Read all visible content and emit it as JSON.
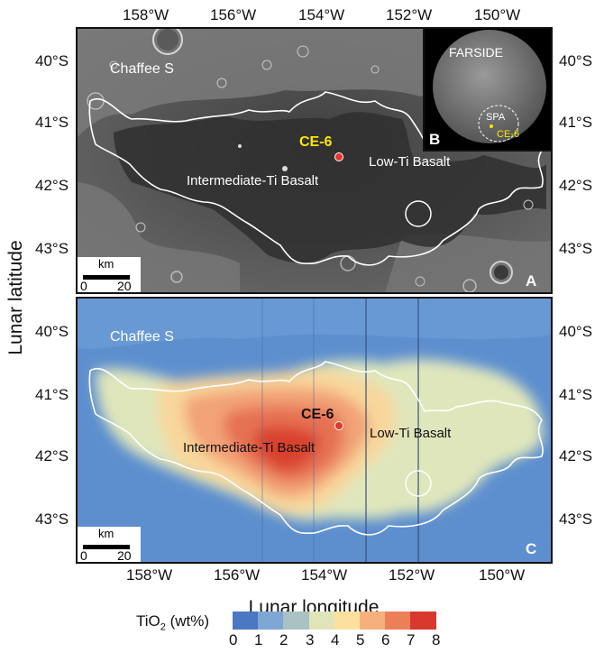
{
  "axes": {
    "lon_ticks": [
      "158°W",
      "156°W",
      "154°W",
      "152°W",
      "150°W"
    ],
    "lat_ticks": [
      "40°S",
      "41°S",
      "42°S",
      "43°S"
    ],
    "x_title": "Lunar longitude",
    "y_title": "Lunar latitude"
  },
  "panel_a": {
    "letter": "A",
    "chaffee": "Chaffee S",
    "site": "CE-6",
    "intermediate": "Intermediate-Ti Basalt",
    "low_ti": "Low-Ti Basalt",
    "scale_unit": "km",
    "scale_min": "0",
    "scale_max": "20"
  },
  "inset": {
    "letter": "B",
    "farside": "FARSIDE",
    "spa": "SPA",
    "site": "CE-6"
  },
  "panel_c": {
    "letter": "C",
    "chaffee": "Chaffee S",
    "site": "CE-6",
    "intermediate": "Intermediate-Ti Basalt",
    "low_ti": "Low-Ti Basalt",
    "scale_unit": "km",
    "scale_min": "0",
    "scale_max": "20"
  },
  "colorbar": {
    "label_main": "TiO",
    "label_sub": "2",
    "label_unit": " (wt%)",
    "ticks": [
      "0",
      "1",
      "2",
      "3",
      "4",
      "5",
      "6",
      "7",
      "8"
    ],
    "colors": [
      "#4a78c2",
      "#7fa7d6",
      "#a9c2c4",
      "#dfe5b8",
      "#fbe0a0",
      "#f6b07d",
      "#ec7f58",
      "#d8392c"
    ]
  },
  "colors": {
    "site_marker": "#e8342a",
    "site_label_a": "#ffe600",
    "outline": "#ffffff"
  }
}
